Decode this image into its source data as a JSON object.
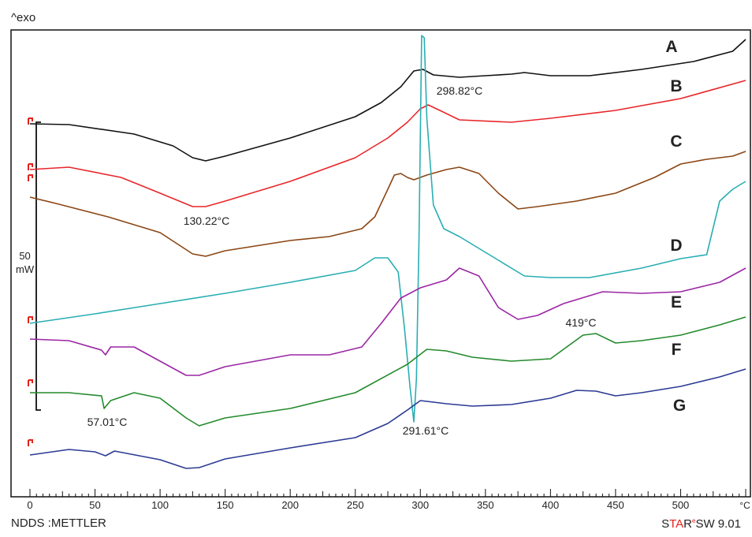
{
  "chart_data": {
    "type": "line",
    "ylabel_top": "^exo",
    "x_unit": "°C",
    "xlim": [
      0,
      550
    ],
    "x_ticks": [
      0,
      50,
      100,
      150,
      200,
      250,
      300,
      350,
      400,
      450,
      500
    ],
    "scale_bar": {
      "value": "50",
      "unit": "mW"
    },
    "grid": false,
    "legend": "curve letters at right end",
    "series": [
      {
        "name": "A",
        "color": "#111111",
        "points": [
          [
            0,
            157
          ],
          [
            30,
            158
          ],
          [
            80,
            170
          ],
          [
            110,
            185
          ],
          [
            125,
            200
          ],
          [
            135,
            204
          ],
          [
            150,
            198
          ],
          [
            200,
            175
          ],
          [
            250,
            148
          ],
          [
            270,
            130
          ],
          [
            285,
            110
          ],
          [
            295,
            90
          ],
          [
            302,
            88
          ],
          [
            310,
            95
          ],
          [
            330,
            98
          ],
          [
            350,
            96
          ],
          [
            370,
            94
          ],
          [
            380,
            92
          ],
          [
            400,
            96
          ],
          [
            430,
            96
          ],
          [
            470,
            88
          ],
          [
            510,
            78
          ],
          [
            540,
            65
          ],
          [
            550,
            50
          ]
        ]
      },
      {
        "name": "B",
        "color": "#e8262a",
        "points": [
          [
            0,
            215
          ],
          [
            30,
            212
          ],
          [
            70,
            225
          ],
          [
            100,
            245
          ],
          [
            125,
            262
          ],
          [
            135,
            262
          ],
          [
            150,
            255
          ],
          [
            200,
            230
          ],
          [
            250,
            200
          ],
          [
            275,
            175
          ],
          [
            290,
            155
          ],
          [
            300,
            138
          ],
          [
            306,
            133
          ],
          [
            315,
            140
          ],
          [
            330,
            152
          ],
          [
            370,
            155
          ],
          [
            400,
            150
          ],
          [
            450,
            140
          ],
          [
            500,
            125
          ],
          [
            550,
            102
          ]
        ]
      },
      {
        "name": "C",
        "color": "#8b4513",
        "points": [
          [
            0,
            250
          ],
          [
            20,
            258
          ],
          [
            60,
            275
          ],
          [
            100,
            295
          ],
          [
            125,
            322
          ],
          [
            135,
            325
          ],
          [
            150,
            318
          ],
          [
            200,
            305
          ],
          [
            230,
            300
          ],
          [
            255,
            290
          ],
          [
            265,
            275
          ],
          [
            275,
            240
          ],
          [
            280,
            222
          ],
          [
            285,
            220
          ],
          [
            290,
            225
          ],
          [
            295,
            228
          ],
          [
            305,
            222
          ],
          [
            320,
            215
          ],
          [
            330,
            212
          ],
          [
            345,
            220
          ],
          [
            360,
            245
          ],
          [
            375,
            265
          ],
          [
            390,
            262
          ],
          [
            420,
            255
          ],
          [
            450,
            245
          ],
          [
            480,
            225
          ],
          [
            500,
            208
          ],
          [
            520,
            202
          ],
          [
            540,
            198
          ],
          [
            550,
            192
          ]
        ]
      },
      {
        "name": "D",
        "color": "#2aaeb3",
        "points": [
          [
            0,
            410
          ],
          [
            50,
            398
          ],
          [
            100,
            385
          ],
          [
            150,
            372
          ],
          [
            200,
            358
          ],
          [
            250,
            343
          ],
          [
            265,
            327
          ],
          [
            275,
            327
          ],
          [
            283,
            345
          ],
          [
            288,
            420
          ],
          [
            292,
            490
          ],
          [
            295,
            535
          ],
          [
            297,
            480
          ],
          [
            299,
            300
          ],
          [
            301,
            45
          ],
          [
            303,
            48
          ],
          [
            305,
            150
          ],
          [
            310,
            260
          ],
          [
            318,
            290
          ],
          [
            330,
            300
          ],
          [
            360,
            330
          ],
          [
            380,
            350
          ],
          [
            400,
            352
          ],
          [
            430,
            352
          ],
          [
            470,
            340
          ],
          [
            500,
            328
          ],
          [
            520,
            323
          ],
          [
            530,
            255
          ],
          [
            540,
            240
          ],
          [
            550,
            230
          ]
        ]
      },
      {
        "name": "E",
        "color": "#9b26a5",
        "points": [
          [
            0,
            430
          ],
          [
            30,
            432
          ],
          [
            55,
            444
          ],
          [
            58,
            450
          ],
          [
            62,
            440
          ],
          [
            80,
            440
          ],
          [
            100,
            458
          ],
          [
            120,
            476
          ],
          [
            130,
            476
          ],
          [
            150,
            465
          ],
          [
            200,
            450
          ],
          [
            230,
            450
          ],
          [
            255,
            440
          ],
          [
            270,
            410
          ],
          [
            285,
            378
          ],
          [
            300,
            365
          ],
          [
            320,
            355
          ],
          [
            330,
            340
          ],
          [
            345,
            350
          ],
          [
            360,
            390
          ],
          [
            375,
            405
          ],
          [
            390,
            400
          ],
          [
            410,
            385
          ],
          [
            440,
            370
          ],
          [
            470,
            372
          ],
          [
            500,
            370
          ],
          [
            530,
            358
          ],
          [
            550,
            340
          ]
        ]
      },
      {
        "name": "F",
        "color": "#238a2c",
        "points": [
          [
            0,
            498
          ],
          [
            30,
            498
          ],
          [
            55,
            502
          ],
          [
            57,
            518
          ],
          [
            62,
            508
          ],
          [
            80,
            498
          ],
          [
            100,
            505
          ],
          [
            120,
            530
          ],
          [
            130,
            540
          ],
          [
            150,
            530
          ],
          [
            200,
            518
          ],
          [
            250,
            498
          ],
          [
            290,
            462
          ],
          [
            305,
            443
          ],
          [
            320,
            445
          ],
          [
            340,
            453
          ],
          [
            370,
            458
          ],
          [
            400,
            455
          ],
          [
            425,
            425
          ],
          [
            435,
            423
          ],
          [
            450,
            435
          ],
          [
            470,
            432
          ],
          [
            500,
            425
          ],
          [
            530,
            412
          ],
          [
            550,
            402
          ]
        ]
      },
      {
        "name": "G",
        "color": "#2b3a93",
        "points": [
          [
            0,
            577
          ],
          [
            30,
            570
          ],
          [
            50,
            573
          ],
          [
            58,
            578
          ],
          [
            65,
            572
          ],
          [
            100,
            583
          ],
          [
            120,
            594
          ],
          [
            130,
            593
          ],
          [
            150,
            582
          ],
          [
            200,
            568
          ],
          [
            250,
            555
          ],
          [
            275,
            537
          ],
          [
            290,
            520
          ],
          [
            300,
            508
          ],
          [
            320,
            512
          ],
          [
            340,
            515
          ],
          [
            370,
            513
          ],
          [
            400,
            505
          ],
          [
            420,
            495
          ],
          [
            435,
            496
          ],
          [
            450,
            502
          ],
          [
            470,
            498
          ],
          [
            500,
            490
          ],
          [
            530,
            478
          ],
          [
            550,
            468
          ]
        ]
      }
    ],
    "annotations": [
      {
        "text": "298.82°C"
      },
      {
        "text": "130.22°C"
      },
      {
        "text": "57.01°C"
      },
      {
        "text": "291.61°C"
      },
      {
        "text": "419°C"
      }
    ]
  },
  "footer": {
    "left": "NDDS :METTLER",
    "software_s": "S",
    "software_ta": "TA",
    "software_r": "R",
    "software_e": "e",
    "software_rest": "SW 9.01"
  }
}
